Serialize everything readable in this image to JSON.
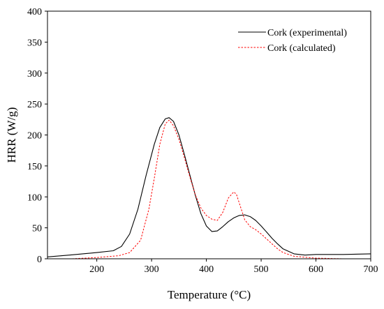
{
  "chart_data": {
    "type": "line",
    "title": "",
    "xlabel": "Temperature (°C)",
    "ylabel": "HRR (W/g)",
    "xlim": [
      110,
      700
    ],
    "ylim": [
      0,
      400
    ],
    "xticks": [
      200,
      300,
      400,
      500,
      600,
      700
    ],
    "yticks": [
      0,
      50,
      100,
      150,
      200,
      250,
      300,
      350,
      400
    ],
    "grid": false,
    "legend_position": "top-right",
    "series": [
      {
        "name": "Cork (experimental)",
        "color": "#000000",
        "style": "solid",
        "x": [
          110,
          150,
          200,
          230,
          245,
          260,
          275,
          290,
          305,
          315,
          325,
          332,
          340,
          350,
          360,
          370,
          380,
          390,
          400,
          410,
          420,
          430,
          440,
          450,
          460,
          470,
          480,
          490,
          500,
          510,
          520,
          530,
          540,
          560,
          580,
          600,
          650,
          700
        ],
        "y": [
          3,
          6,
          10,
          13,
          20,
          40,
          80,
          135,
          185,
          212,
          226,
          228,
          222,
          200,
          168,
          135,
          102,
          73,
          53,
          44,
          45,
          52,
          60,
          66,
          70,
          71,
          68,
          62,
          53,
          43,
          33,
          24,
          16,
          8,
          6,
          7,
          7,
          8
        ]
      },
      {
        "name": "Cork (calculated)",
        "color": "#ff0000",
        "style": "dashed",
        "x": [
          155,
          200,
          240,
          260,
          280,
          295,
          305,
          315,
          325,
          332,
          340,
          350,
          360,
          370,
          380,
          390,
          400,
          410,
          420,
          430,
          440,
          450,
          455,
          460,
          470,
          480,
          490,
          500,
          510,
          520,
          530,
          540,
          560,
          600,
          650,
          700
        ],
        "y": [
          0,
          2,
          5,
          10,
          30,
          80,
          130,
          185,
          218,
          224,
          215,
          193,
          163,
          132,
          103,
          82,
          70,
          64,
          62,
          75,
          98,
          108,
          104,
          90,
          63,
          52,
          47,
          40,
          32,
          24,
          16,
          10,
          4,
          1,
          0,
          0
        ]
      }
    ]
  }
}
